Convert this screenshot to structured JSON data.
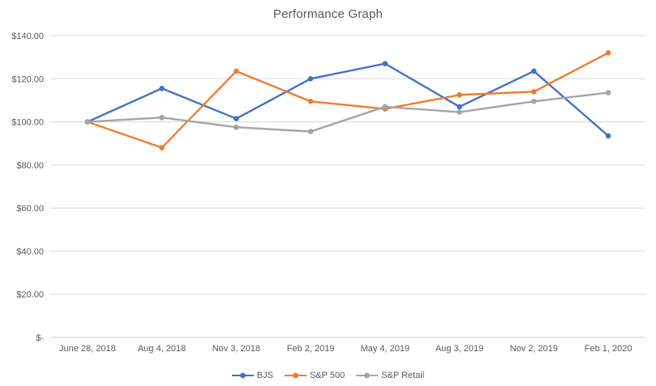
{
  "chart_data": {
    "type": "line",
    "title": "Performance Graph",
    "categories": [
      "June 28, 2018",
      "Aug 4, 2018",
      "Nov 3, 2018",
      "Feb 2, 2019",
      "May 4, 2019",
      "Aug 3, 2019",
      "Nov 2, 2019",
      "Feb 1, 2020"
    ],
    "series": [
      {
        "name": "BJS",
        "color": "#4472C4",
        "marker": "circle",
        "values": [
          100,
          115.5,
          101.5,
          120,
          127,
          107,
          123.5,
          93.5
        ]
      },
      {
        "name": "S&P 500",
        "color": "#ED7D31",
        "marker": "circle",
        "values": [
          100,
          88,
          123.5,
          109.5,
          106,
          112.5,
          114,
          132
        ]
      },
      {
        "name": "S&P Retail",
        "color": "#A5A5A5",
        "marker": "circle",
        "values": [
          100,
          102,
          97.5,
          95.5,
          107,
          104.5,
          109.5,
          113.5
        ]
      }
    ],
    "xlabel": "",
    "ylabel": "",
    "ylim": [
      0,
      140
    ],
    "ytick_step": 20,
    "yticks": [
      {
        "value": 140,
        "label": "$140.00"
      },
      {
        "value": 120,
        "label": "$120.00"
      },
      {
        "value": 100,
        "label": "$100.00"
      },
      {
        "value": 80,
        "label": "$80.00"
      },
      {
        "value": 60,
        "label": "$60.00"
      },
      {
        "value": 40,
        "label": "$40.00"
      },
      {
        "value": 20,
        "label": "$20.00"
      },
      {
        "value": 0,
        "label": "$-"
      }
    ],
    "grid": "horizontal-only",
    "legend_position": "bottom",
    "axis_text_color": "#595959",
    "gridline_color": "#D9D9D9",
    "axis_line_color": "#C9C9C9",
    "background_color": "#FFFFFF"
  }
}
